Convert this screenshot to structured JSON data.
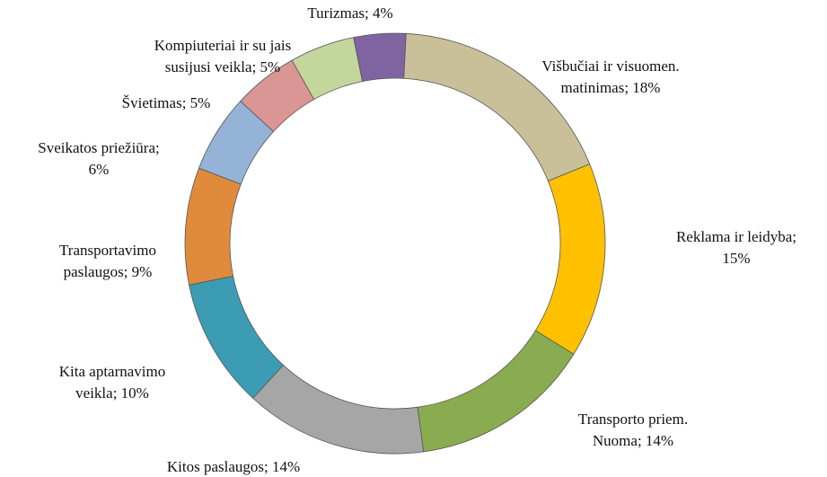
{
  "chart_data": {
    "type": "donut",
    "values": [
      18,
      15,
      14,
      14,
      10,
      9,
      6,
      5,
      5,
      4
    ],
    "value_labels": [
      [
        "Višbučiai ir visuomen.",
        "matinimas; 18%"
      ],
      [
        "Reklama ir leidyba;",
        "15%"
      ],
      [
        "Transporto priem.",
        "Nuoma; 14%"
      ],
      [
        "Kitos paslaugos; 14%"
      ],
      [
        "Kita aptarnavimo",
        "veikla; 10%"
      ],
      [
        "Transportavimo",
        "paslaugos; 9%"
      ],
      [
        "Sveikatos priežiūra;",
        "6%"
      ],
      [
        "Švietimas; 5%"
      ],
      [
        "Kompiuteriai ir su jais",
        "susijusi veikla; 5%"
      ],
      [
        "Turizmas; 4%"
      ]
    ],
    "colors": [
      "#c9c09a",
      "#ffc000",
      "#8aac50",
      "#a6a6a6",
      "#3b9cb4",
      "#e08a3c",
      "#95b3d7",
      "#d99694",
      "#c3d69b",
      "#8064a2"
    ]
  }
}
